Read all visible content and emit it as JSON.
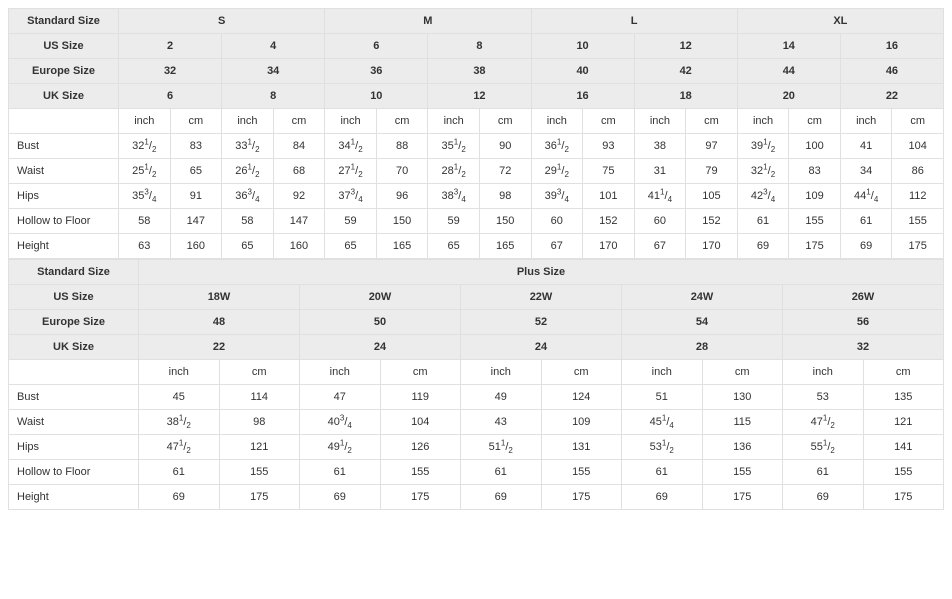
{
  "labels": {
    "standard_size": "Standard Size",
    "us_size": "US Size",
    "europe_size": "Europe Size",
    "uk_size": "UK Size",
    "inch": "inch",
    "cm": "cm",
    "plus_size": "Plus Size"
  },
  "top": {
    "standard_sizes": [
      "S",
      "M",
      "L",
      "XL"
    ],
    "us_sizes": [
      "2",
      "4",
      "6",
      "8",
      "10",
      "12",
      "14",
      "16"
    ],
    "eu_sizes": [
      "32",
      "34",
      "36",
      "38",
      "40",
      "42",
      "44",
      "46"
    ],
    "uk_sizes": [
      "6",
      "8",
      "10",
      "12",
      "16",
      "18",
      "20",
      "22"
    ],
    "measurements": [
      {
        "label": "Bust",
        "cells": [
          {
            "inch_whole": "32",
            "num": "1",
            "den": "2",
            "cm": "83"
          },
          {
            "inch_whole": "33",
            "num": "1",
            "den": "2",
            "cm": "84"
          },
          {
            "inch_whole": "34",
            "num": "1",
            "den": "2",
            "cm": "88"
          },
          {
            "inch_whole": "35",
            "num": "1",
            "den": "2",
            "cm": "90"
          },
          {
            "inch_whole": "36",
            "num": "1",
            "den": "2",
            "cm": "93"
          },
          {
            "inch_whole": "38",
            "num": "",
            "den": "",
            "cm": "97"
          },
          {
            "inch_whole": "39",
            "num": "1",
            "den": "2",
            "cm": "100"
          },
          {
            "inch_whole": "41",
            "num": "",
            "den": "",
            "cm": "104"
          }
        ]
      },
      {
        "label": "Waist",
        "cells": [
          {
            "inch_whole": "25",
            "num": "1",
            "den": "2",
            "cm": "65"
          },
          {
            "inch_whole": "26",
            "num": "1",
            "den": "2",
            "cm": "68"
          },
          {
            "inch_whole": "27",
            "num": "1",
            "den": "2",
            "cm": "70"
          },
          {
            "inch_whole": "28",
            "num": "1",
            "den": "2",
            "cm": "72"
          },
          {
            "inch_whole": "29",
            "num": "1",
            "den": "2",
            "cm": "75"
          },
          {
            "inch_whole": "31",
            "num": "",
            "den": "",
            "cm": "79"
          },
          {
            "inch_whole": "32",
            "num": "1",
            "den": "2",
            "cm": "83"
          },
          {
            "inch_whole": "34",
            "num": "",
            "den": "",
            "cm": "86"
          }
        ]
      },
      {
        "label": "Hips",
        "cells": [
          {
            "inch_whole": "35",
            "num": "3",
            "den": "4",
            "cm": "91"
          },
          {
            "inch_whole": "36",
            "num": "3",
            "den": "4",
            "cm": "92"
          },
          {
            "inch_whole": "37",
            "num": "3",
            "den": "4",
            "cm": "96"
          },
          {
            "inch_whole": "38",
            "num": "3",
            "den": "4",
            "cm": "98"
          },
          {
            "inch_whole": "39",
            "num": "3",
            "den": "4",
            "cm": "101"
          },
          {
            "inch_whole": "41",
            "num": "1",
            "den": "4",
            "cm": "105"
          },
          {
            "inch_whole": "42",
            "num": "3",
            "den": "4",
            "cm": "109"
          },
          {
            "inch_whole": "44",
            "num": "1",
            "den": "4",
            "cm": "112"
          }
        ]
      },
      {
        "label": "Hollow to Floor",
        "cells": [
          {
            "inch_whole": "58",
            "num": "",
            "den": "",
            "cm": "147"
          },
          {
            "inch_whole": "58",
            "num": "",
            "den": "",
            "cm": "147"
          },
          {
            "inch_whole": "59",
            "num": "",
            "den": "",
            "cm": "150"
          },
          {
            "inch_whole": "59",
            "num": "",
            "den": "",
            "cm": "150"
          },
          {
            "inch_whole": "60",
            "num": "",
            "den": "",
            "cm": "152"
          },
          {
            "inch_whole": "60",
            "num": "",
            "den": "",
            "cm": "152"
          },
          {
            "inch_whole": "61",
            "num": "",
            "den": "",
            "cm": "155"
          },
          {
            "inch_whole": "61",
            "num": "",
            "den": "",
            "cm": "155"
          }
        ]
      },
      {
        "label": "Height",
        "cells": [
          {
            "inch_whole": "63",
            "num": "",
            "den": "",
            "cm": "160"
          },
          {
            "inch_whole": "65",
            "num": "",
            "den": "",
            "cm": "160"
          },
          {
            "inch_whole": "65",
            "num": "",
            "den": "",
            "cm": "165"
          },
          {
            "inch_whole": "65",
            "num": "",
            "den": "",
            "cm": "165"
          },
          {
            "inch_whole": "67",
            "num": "",
            "den": "",
            "cm": "170"
          },
          {
            "inch_whole": "67",
            "num": "",
            "den": "",
            "cm": "170"
          },
          {
            "inch_whole": "69",
            "num": "",
            "den": "",
            "cm": "175"
          },
          {
            "inch_whole": "69",
            "num": "",
            "den": "",
            "cm": "175"
          }
        ]
      }
    ]
  },
  "bottom": {
    "us_sizes": [
      "18W",
      "20W",
      "22W",
      "24W",
      "26W"
    ],
    "eu_sizes": [
      "48",
      "50",
      "52",
      "54",
      "56"
    ],
    "uk_sizes": [
      "22",
      "24",
      "24",
      "28",
      "32"
    ],
    "measurements": [
      {
        "label": "Bust",
        "cells": [
          {
            "inch_whole": "45",
            "num": "",
            "den": "",
            "cm": "114"
          },
          {
            "inch_whole": "47",
            "num": "",
            "den": "",
            "cm": "119"
          },
          {
            "inch_whole": "49",
            "num": "",
            "den": "",
            "cm": "124"
          },
          {
            "inch_whole": "51",
            "num": "",
            "den": "",
            "cm": "130"
          },
          {
            "inch_whole": "53",
            "num": "",
            "den": "",
            "cm": "135"
          }
        ]
      },
      {
        "label": "Waist",
        "cells": [
          {
            "inch_whole": "38",
            "num": "1",
            "den": "2",
            "cm": "98"
          },
          {
            "inch_whole": "40",
            "num": "3",
            "den": "4",
            "cm": "104"
          },
          {
            "inch_whole": "43",
            "num": "",
            "den": "",
            "cm": "109"
          },
          {
            "inch_whole": "45",
            "num": "1",
            "den": "4",
            "cm": "115"
          },
          {
            "inch_whole": "47",
            "num": "1",
            "den": "2",
            "cm": "121"
          }
        ]
      },
      {
        "label": "Hips",
        "cells": [
          {
            "inch_whole": "47",
            "num": "1",
            "den": "2",
            "cm": "121"
          },
          {
            "inch_whole": "49",
            "num": "1",
            "den": "2",
            "cm": "126"
          },
          {
            "inch_whole": "51",
            "num": "1",
            "den": "2",
            "cm": "131"
          },
          {
            "inch_whole": "53",
            "num": "1",
            "den": "2",
            "cm": "136"
          },
          {
            "inch_whole": "55",
            "num": "1",
            "den": "2",
            "cm": "141"
          }
        ]
      },
      {
        "label": "Hollow to Floor",
        "cells": [
          {
            "inch_whole": "61",
            "num": "",
            "den": "",
            "cm": "155"
          },
          {
            "inch_whole": "61",
            "num": "",
            "den": "",
            "cm": "155"
          },
          {
            "inch_whole": "61",
            "num": "",
            "den": "",
            "cm": "155"
          },
          {
            "inch_whole": "61",
            "num": "",
            "den": "",
            "cm": "155"
          },
          {
            "inch_whole": "61",
            "num": "",
            "den": "",
            "cm": "155"
          }
        ]
      },
      {
        "label": "Height",
        "cells": [
          {
            "inch_whole": "69",
            "num": "",
            "den": "",
            "cm": "175"
          },
          {
            "inch_whole": "69",
            "num": "",
            "den": "",
            "cm": "175"
          },
          {
            "inch_whole": "69",
            "num": "",
            "den": "",
            "cm": "175"
          },
          {
            "inch_whole": "69",
            "num": "",
            "den": "",
            "cm": "175"
          },
          {
            "inch_whole": "69",
            "num": "",
            "den": "",
            "cm": "175"
          }
        ]
      }
    ]
  }
}
